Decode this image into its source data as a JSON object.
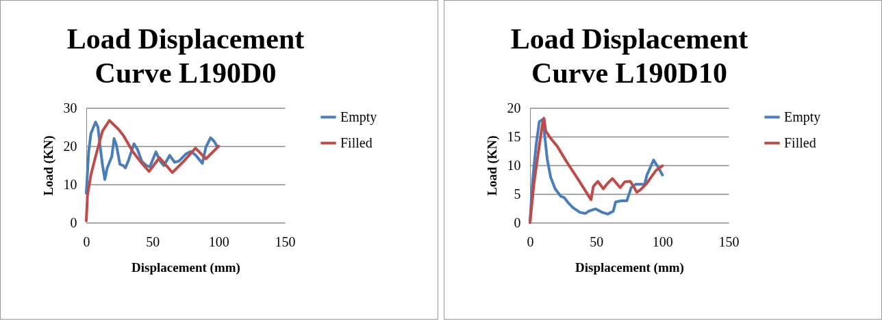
{
  "chart_data": [
    {
      "type": "line",
      "title": "Load Displacement\nCurve L190D0",
      "xlabel": "Displacement (mm)",
      "ylabel": "Load (KN)",
      "xlim": [
        0,
        150
      ],
      "xticks": [
        0,
        50,
        100,
        150
      ],
      "ylim": [
        0,
        30
      ],
      "yticks": [
        0,
        10,
        20,
        30
      ],
      "grid": "y",
      "legend": "right",
      "series": [
        {
          "name": "Empty",
          "color": "#4a7ebb",
          "x": [
            0,
            1.8,
            3.5,
            7,
            8.8,
            10.5,
            12.3,
            14,
            15.8,
            19.3,
            21,
            22.8,
            25.4,
            28,
            29.5,
            31.6,
            36,
            38.6,
            42,
            45.6,
            48,
            52.6,
            56,
            58.6,
            63,
            66.7,
            70,
            75.4,
            78.9,
            82.5,
            87.7,
            90.4,
            93.9,
            96.5,
            99.1
          ],
          "values": [
            7.7,
            18.5,
            23.3,
            26.3,
            25,
            19.8,
            15,
            11.3,
            14.3,
            17.3,
            22,
            20.2,
            15.3,
            14.9,
            14.3,
            16,
            20.6,
            19.2,
            16,
            14.9,
            14.6,
            18.5,
            16,
            14.9,
            17.6,
            15.8,
            16.1,
            18,
            18.6,
            17.7,
            15.5,
            19.8,
            22.2,
            21.3,
            19.8
          ]
        },
        {
          "name": "Filled",
          "color": "#be4b48",
          "x": [
            0,
            0.9,
            3.5,
            7,
            12.3,
            17.5,
            24.6,
            28,
            35,
            42,
            47.4,
            55.3,
            65,
            73.7,
            82.5,
            90.4,
            100
          ],
          "values": [
            0.5,
            7.1,
            12.5,
            17.3,
            24,
            26.7,
            24.3,
            22.8,
            18.6,
            15.5,
            13.4,
            17,
            13.1,
            16.1,
            19.5,
            16.7,
            20
          ]
        }
      ]
    },
    {
      "type": "line",
      "title": "Load Displacement\nCurve L190D10",
      "xlabel": "Displacement (mm)",
      "ylabel": "Load (KN)",
      "xlim": [
        0,
        150
      ],
      "xticks": [
        0,
        50,
        100,
        150
      ],
      "ylim": [
        0,
        20
      ],
      "yticks": [
        0,
        5,
        10,
        15,
        20
      ],
      "grid": "y",
      "legend": "right",
      "series": [
        {
          "name": "Empty",
          "color": "#4a7ebb",
          "x": [
            0,
            2,
            4.6,
            7,
            9.6,
            11.3,
            13,
            15.6,
            19,
            23.2,
            25.7,
            29.1,
            32.5,
            37.6,
            41.8,
            44.4,
            49.4,
            54.5,
            58.7,
            62.9,
            64.6,
            68.8,
            73.1,
            76.4,
            79.8,
            86.6,
            88.3,
            93.3,
            96.7,
            100
          ],
          "values": [
            0.2,
            7.5,
            13.5,
            17.6,
            18,
            14.7,
            11.1,
            7.9,
            5.9,
            4.6,
            4.4,
            3.4,
            2.6,
            1.8,
            1.6,
            2,
            2.4,
            1.8,
            1.5,
            2,
            3.6,
            3.8,
            3.8,
            6.1,
            6.7,
            6.7,
            8.3,
            10.9,
            9.7,
            8.3
          ]
        },
        {
          "name": "Filled",
          "color": "#be4b48",
          "x": [
            0,
            2.9,
            6.3,
            9.6,
            10.5,
            11.8,
            15.6,
            20.6,
            27.4,
            37.6,
            44.4,
            46.1,
            47.8,
            51.2,
            55.4,
            58,
            62.2,
            68.1,
            71.5,
            75.7,
            78.2,
            80.7,
            83.3,
            88.3,
            95.1,
            100
          ],
          "values": [
            0,
            6.7,
            12.3,
            17.6,
            18.2,
            16,
            14.7,
            13.3,
            10.7,
            7.1,
            4.6,
            4,
            6.3,
            7.2,
            5.9,
            6.7,
            7.7,
            6.1,
            7.1,
            7.2,
            6.3,
            5.3,
            5.7,
            6.9,
            9.1,
            9.9
          ]
        }
      ]
    }
  ]
}
